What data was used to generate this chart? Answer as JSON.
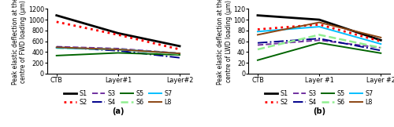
{
  "fwd": {
    "x_labels": [
      "CTB",
      "Layer#1",
      "Layer#2"
    ],
    "series": {
      "S1": [
        1080,
        750,
        510
      ],
      "S2": [
        960,
        720,
        450
      ],
      "S3": [
        500,
        465,
        378
      ],
      "S4": [
        490,
        425,
        295
      ],
      "S5": [
        335,
        385,
        348
      ],
      "S6": [
        475,
        448,
        368
      ],
      "S7": [
        478,
        448,
        375
      ],
      "L8": [
        488,
        448,
        375
      ]
    },
    "ylabel": "Peak elastic deflection at the\ncentre of FWD loading (μm)",
    "ylim": [
      0,
      1200
    ],
    "yticks": [
      0,
      200,
      400,
      600,
      800,
      1000,
      1200
    ],
    "label": "(a)"
  },
  "lwd": {
    "x_labels": [
      "CTB",
      "Layer #1",
      "Layer #2"
    ],
    "series": {
      "S1": [
        108,
        100,
        62
      ],
      "S2": [
        82,
        91,
        60
      ],
      "S3": [
        53,
        62,
        48
      ],
      "S4": [
        57,
        65,
        43
      ],
      "S5": [
        25,
        57,
        38
      ],
      "S6": [
        45,
        72,
        48
      ],
      "S7": [
        78,
        87,
        55
      ],
      "L8": [
        72,
        95,
        67
      ]
    },
    "ylabel": "Peak elastic deflection at the\ncentre of LWD loading (μm)",
    "ylim": [
      0,
      120
    ],
    "yticks": [
      0,
      20,
      40,
      60,
      80,
      100,
      120
    ],
    "label": "(b)"
  },
  "styles": {
    "S1": {
      "color": "#000000",
      "linestyle": "-",
      "linewidth": 2.0
    },
    "S2": {
      "color": "#ff0000",
      "linestyle": ":",
      "linewidth": 2.0
    },
    "S3": {
      "color": "#7030a0",
      "linestyle": "--",
      "linewidth": 1.4
    },
    "S4": {
      "color": "#00008b",
      "linestyle": "-.",
      "linewidth": 1.4
    },
    "S5": {
      "color": "#006400",
      "linestyle": "-",
      "linewidth": 1.4
    },
    "S6": {
      "color": "#90ee90",
      "linestyle": "--",
      "linewidth": 1.8
    },
    "S7": {
      "color": "#00bfff",
      "linestyle": "-",
      "linewidth": 1.4
    },
    "L8": {
      "color": "#8b4513",
      "linestyle": "-",
      "linewidth": 1.4
    }
  },
  "legend_order": [
    "S1",
    "S2",
    "S3",
    "S4",
    "S5",
    "S6",
    "S7",
    "L8"
  ],
  "fontsize": 5.8,
  "label_fontsize": 7.0,
  "ylabel_fontsize": 5.5
}
